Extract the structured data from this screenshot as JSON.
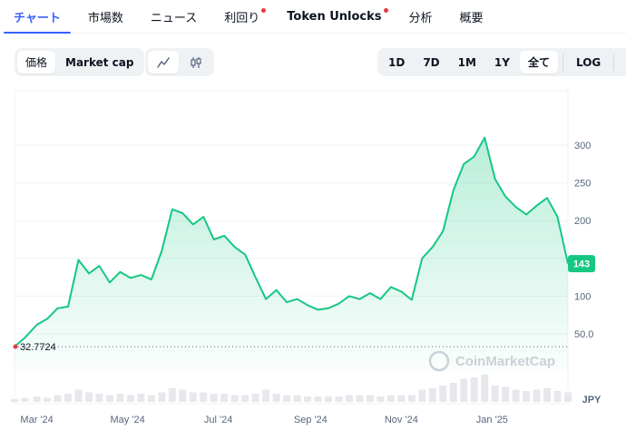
{
  "tabs": [
    {
      "label": "チャート",
      "active": true,
      "dot": false,
      "bold": false,
      "name": "tab-chart"
    },
    {
      "label": "市場数",
      "active": false,
      "dot": false,
      "bold": false,
      "name": "tab-markets"
    },
    {
      "label": "ニュース",
      "active": false,
      "dot": false,
      "bold": false,
      "name": "tab-news"
    },
    {
      "label": "利回り",
      "active": false,
      "dot": true,
      "bold": false,
      "name": "tab-yield"
    },
    {
      "label": "Token Unlocks",
      "active": false,
      "dot": true,
      "bold": true,
      "name": "tab-token-unlocks"
    },
    {
      "label": "分析",
      "active": false,
      "dot": false,
      "bold": false,
      "name": "tab-analysis"
    },
    {
      "label": "概要",
      "active": false,
      "dot": false,
      "bold": false,
      "name": "tab-overview"
    }
  ],
  "controls": {
    "price_label": "価格",
    "marketcap_label": "Market cap",
    "line_icon": "line-chart-icon",
    "candle_icon": "candlestick-icon",
    "ranges": [
      "1D",
      "7D",
      "1M",
      "1Y",
      "全て"
    ],
    "selected_range": "全て",
    "log_label": "LOG",
    "more_label": "···"
  },
  "chart_data": {
    "type": "area",
    "currency": "JPY",
    "yticks": [
      50.0,
      100,
      150,
      200,
      250,
      300
    ],
    "ytick_labels": [
      "50.0",
      "100",
      "",
      "200",
      "250",
      "300"
    ],
    "xticks": [
      "Mar '24",
      "May '24",
      "Jul '24",
      "Sep '24",
      "Nov '24",
      "Jan '25"
    ],
    "current_price": "143",
    "low_label": "32.7724",
    "watermark": "CoinMarketCap",
    "x": [
      "2024-02-15",
      "2024-02-22",
      "2024-03-01",
      "2024-03-08",
      "2024-03-15",
      "2024-03-22",
      "2024-03-29",
      "2024-04-05",
      "2024-04-12",
      "2024-04-19",
      "2024-04-26",
      "2024-05-03",
      "2024-05-10",
      "2024-05-17",
      "2024-05-24",
      "2024-05-31",
      "2024-06-07",
      "2024-06-14",
      "2024-06-21",
      "2024-06-28",
      "2024-07-05",
      "2024-07-12",
      "2024-07-19",
      "2024-07-26",
      "2024-08-02",
      "2024-08-09",
      "2024-08-16",
      "2024-08-23",
      "2024-08-30",
      "2024-09-06",
      "2024-09-13",
      "2024-09-20",
      "2024-09-27",
      "2024-10-04",
      "2024-10-11",
      "2024-10-18",
      "2024-10-25",
      "2024-11-01",
      "2024-11-08",
      "2024-11-15",
      "2024-11-22",
      "2024-11-29",
      "2024-12-06",
      "2024-12-13",
      "2024-12-20",
      "2024-12-27",
      "2025-01-03",
      "2025-01-10",
      "2025-01-17",
      "2025-01-24",
      "2025-01-31",
      "2025-02-07",
      "2025-02-14",
      "2025-02-21"
    ],
    "values": [
      33,
      45,
      62,
      70,
      84,
      86,
      148,
      130,
      140,
      118,
      132,
      124,
      128,
      122,
      160,
      215,
      210,
      195,
      205,
      175,
      180,
      165,
      155,
      125,
      96,
      108,
      92,
      96,
      88,
      82,
      84,
      90,
      100,
      96,
      104,
      96,
      112,
      106,
      95,
      150,
      165,
      186,
      240,
      275,
      285,
      310,
      255,
      232,
      218,
      208,
      220,
      230,
      205,
      143
    ],
    "volume": [
      2,
      3,
      4,
      3,
      5,
      6,
      9,
      7,
      6,
      5,
      6,
      5,
      6,
      5,
      7,
      10,
      9,
      7,
      7,
      6,
      6,
      5,
      5,
      6,
      9,
      6,
      5,
      5,
      4,
      4,
      4,
      4,
      5,
      5,
      5,
      4,
      5,
      5,
      5,
      9,
      10,
      12,
      14,
      17,
      18,
      20,
      12,
      11,
      9,
      8,
      9,
      10,
      8,
      7
    ]
  }
}
